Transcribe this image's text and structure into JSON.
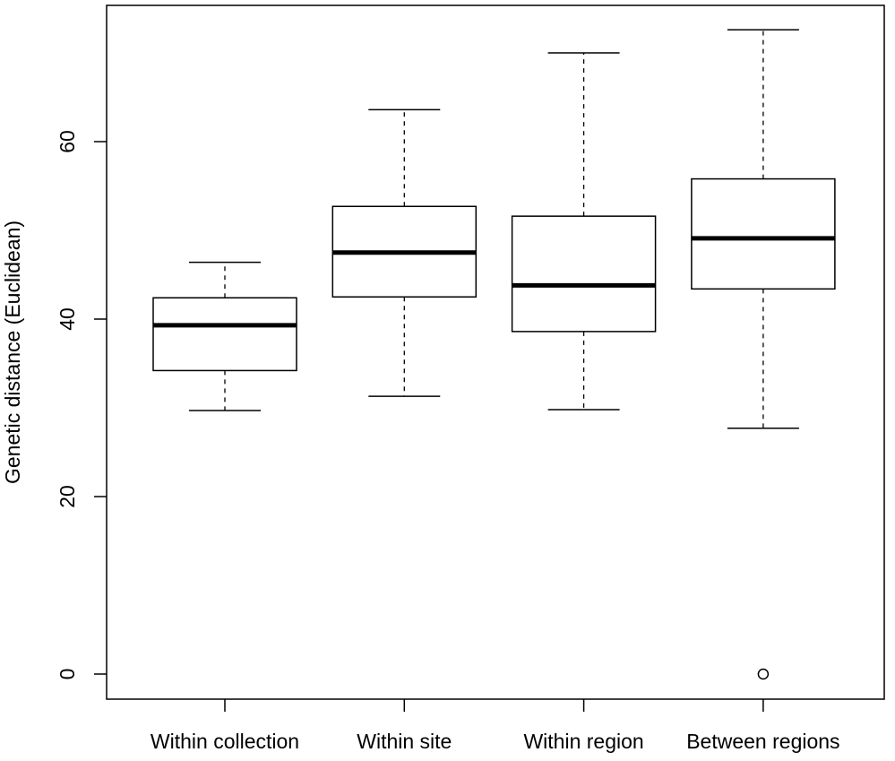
{
  "chart_data": {
    "type": "boxplot",
    "title": "",
    "xlabel": "",
    "ylabel": "Genetic distance (Euclidean)",
    "ylim": [
      -3,
      75
    ],
    "yticks": [
      0,
      20,
      40,
      60
    ],
    "grid": false,
    "categories": [
      "Within collection",
      "Within site",
      "Within region",
      "Between regions"
    ],
    "boxes": [
      {
        "name": "Within collection",
        "whisker_low": 29.7,
        "q1": 34.2,
        "median": 39.3,
        "q3": 42.4,
        "whisker_high": 46.4,
        "outliers": []
      },
      {
        "name": "Within site",
        "whisker_low": 31.3,
        "q1": 42.5,
        "median": 47.5,
        "q3": 52.7,
        "whisker_high": 63.6,
        "outliers": []
      },
      {
        "name": "Within region",
        "whisker_low": 29.8,
        "q1": 38.6,
        "median": 43.8,
        "q3": 51.6,
        "whisker_high": 70.0,
        "outliers": []
      },
      {
        "name": "Between regions",
        "whisker_low": 27.7,
        "q1": 43.4,
        "median": 49.1,
        "q3": 55.8,
        "whisker_high": 72.6,
        "outliers": [
          0
        ]
      }
    ]
  }
}
